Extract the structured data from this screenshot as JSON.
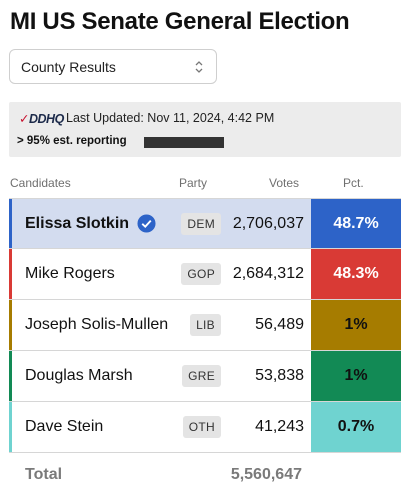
{
  "page": {
    "title": "MI US Senate General Election"
  },
  "dropdown": {
    "selected": "County Results"
  },
  "status": {
    "logo": "DDHQ",
    "last_updated": "Last Updated: Nov 11, 2024, 4:42 PM",
    "reporting": "> 95% est. reporting"
  },
  "table": {
    "headers": {
      "candidates": "Candidates",
      "party": "Party",
      "votes": "Votes",
      "pct": "Pct."
    },
    "rows": [
      {
        "name": "Elissa Slotkin",
        "party": "DEM",
        "votes": "2,706,037",
        "pct": "48.7%",
        "color": "#2d63c8",
        "text_color": "#ffffff",
        "winner": true
      },
      {
        "name": "Mike Rogers",
        "party": "GOP",
        "votes": "2,684,312",
        "pct": "48.3%",
        "color": "#d93a35",
        "text_color": "#ffffff",
        "winner": false
      },
      {
        "name": "Joseph Solis-Mullen",
        "party": "LIB",
        "votes": "56,489",
        "pct": "1%",
        "color": "#a67c00",
        "text_color": "#111111",
        "winner": false
      },
      {
        "name": "Douglas Marsh",
        "party": "GRE",
        "votes": "53,838",
        "pct": "1%",
        "color": "#128a55",
        "text_color": "#111111",
        "winner": false
      },
      {
        "name": "Dave Stein",
        "party": "OTH",
        "votes": "41,243",
        "pct": "0.7%",
        "color": "#6fd3d0",
        "text_color": "#111111",
        "winner": false
      }
    ],
    "total_label": "Total",
    "total_votes": "5,560,647"
  }
}
